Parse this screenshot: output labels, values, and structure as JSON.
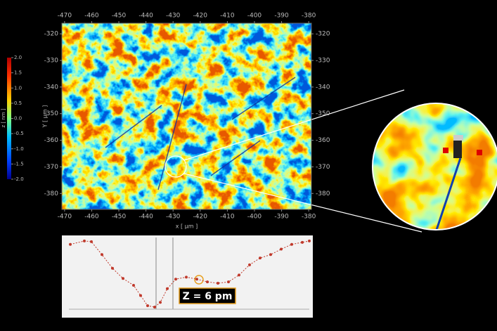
{
  "chart_data": [
    {
      "type": "heatmap",
      "xlabel": "x [ µm ]",
      "ylabel": "Y [ µm ]",
      "colormap": "jet",
      "xlim": [
        -471,
        -379
      ],
      "xticks": [
        -470,
        -460,
        -450,
        -440,
        -430,
        -420,
        -410,
        -400,
        -390,
        -380
      ],
      "ylim": [
        -316,
        -386
      ],
      "yticks": [
        -320,
        -330,
        -340,
        -350,
        -360,
        -370,
        -380
      ],
      "colorbar": {
        "label": "z [ nm ]",
        "lim": [
          -2,
          2
        ],
        "ticks": [
          {
            "value": 2,
            "label": "2.0"
          },
          1.5,
          {
            "value": 1,
            "label": "1.0"
          },
          0.5,
          {
            "value": 0,
            "label": "0.0"
          },
          -0.5,
          {
            "value": -1,
            "label": "-1.0"
          },
          -1.5,
          {
            "value": -2,
            "label": "-2.0"
          }
        ]
      }
    },
    {
      "type": "line",
      "annotation": "Z = 6 pm",
      "color": "#c0392b",
      "xlim": [
        0,
        340
      ],
      "ylim": [
        0,
        100
      ],
      "x": [
        0,
        20,
        30,
        45,
        60,
        75,
        90,
        100,
        110,
        120,
        128,
        138,
        150,
        165,
        180,
        195,
        210,
        225,
        240,
        255,
        270,
        285,
        300,
        315,
        330,
        340
      ],
      "values": [
        92,
        97,
        96,
        77,
        57,
        42,
        32,
        17,
        2,
        0,
        7,
        27,
        41,
        44,
        41,
        37,
        35,
        37,
        47,
        62,
        72,
        77,
        85,
        92,
        95,
        97
      ]
    }
  ]
}
